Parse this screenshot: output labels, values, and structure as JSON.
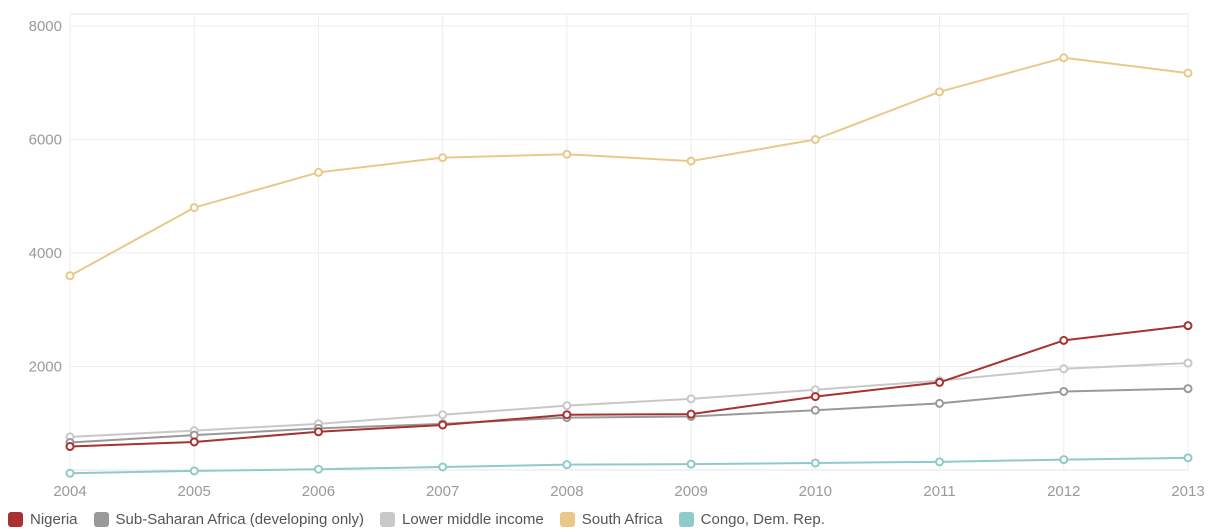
{
  "chart_data": {
    "type": "line",
    "x": [
      "2004",
      "2005",
      "2006",
      "2007",
      "2008",
      "2009",
      "2010",
      "2011",
      "2012",
      "2013"
    ],
    "ylim": [
      0,
      8000
    ],
    "yticks": [
      "2000",
      "4000",
      "6000",
      "8000"
    ],
    "ytick_values": [
      2000,
      4000,
      6000,
      8000
    ],
    "grid": true,
    "legend_position": "bottom-left",
    "series": [
      {
        "name": "South Africa",
        "color": "#e8c98a",
        "values": [
          3600,
          4800,
          5420,
          5680,
          5740,
          5620,
          6000,
          6840,
          7440,
          7170
        ]
      },
      {
        "name": "Lower middle income",
        "color": "#c8c8c8",
        "values": [
          760,
          870,
          990,
          1150,
          1310,
          1430,
          1590,
          1750,
          1960,
          2060
        ]
      },
      {
        "name": "Sub-Saharan Africa (developing only)",
        "color": "#999999",
        "values": [
          660,
          790,
          910,
          990,
          1100,
          1120,
          1230,
          1350,
          1560,
          1610
        ]
      },
      {
        "name": "Nigeria",
        "color": "#a83232",
        "values": [
          590,
          670,
          850,
          970,
          1150,
          1160,
          1470,
          1720,
          2460,
          2720
        ]
      },
      {
        "name": "Congo, Dem. Rep.",
        "color": "#8fcaca",
        "values": [
          120,
          160,
          190,
          230,
          270,
          280,
          300,
          320,
          360,
          390
        ]
      }
    ],
    "legend": [
      {
        "label": "Nigeria",
        "color": "#a83232"
      },
      {
        "label": "Sub-Saharan Africa (developing only)",
        "color": "#999999"
      },
      {
        "label": "Lower middle income",
        "color": "#c8c8c8"
      },
      {
        "label": "South Africa",
        "color": "#e8c98a"
      },
      {
        "label": "Congo, Dem. Rep.",
        "color": "#8fcaca"
      }
    ]
  }
}
